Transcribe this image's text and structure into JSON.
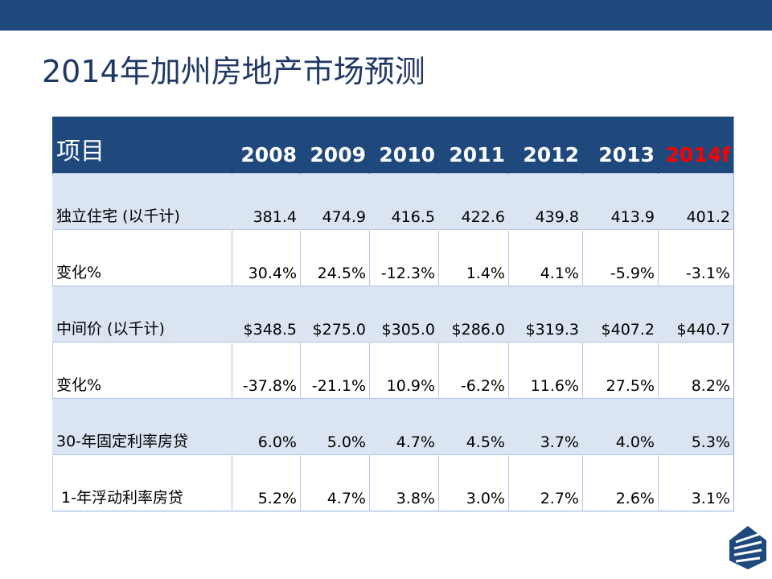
{
  "title": "2014年加州房地产市场预测",
  "table": {
    "header": [
      "项目",
      "2008",
      "2009",
      "2010",
      "2011",
      "2012",
      "2013",
      "2014f"
    ],
    "rows": [
      [
        "独立住宅 (以千计)",
        "381.4",
        "474.9",
        "416.5",
        "422.6",
        "439.8",
        "413.9",
        "401.2"
      ],
      [
        "变化%",
        "30.4%",
        "24.5%",
        "-12.3%",
        "1.4%",
        "4.1%",
        "-5.9%",
        "-3.1%"
      ],
      [
        "中间价 (以千计)",
        "$348.5",
        "$275.0",
        "$305.0",
        "$286.0",
        "$319.3",
        "$407.2",
        "$440.7"
      ],
      [
        "变化%",
        "-37.8%",
        "-21.1%",
        "10.9%",
        "-6.2%",
        "11.6%",
        "27.5%",
        "8.2%"
      ],
      [
        "30-年固定利率房贷",
        "6.0%",
        "5.0%",
        "4.7%",
        "4.5%",
        "3.7%",
        "4.0%",
        "5.3%"
      ],
      [
        "1-年浮动利率房贷",
        "5.2%",
        "4.7%",
        "3.8%",
        "3.0%",
        "2.7%",
        "2.6%",
        "3.1%"
      ]
    ]
  }
}
